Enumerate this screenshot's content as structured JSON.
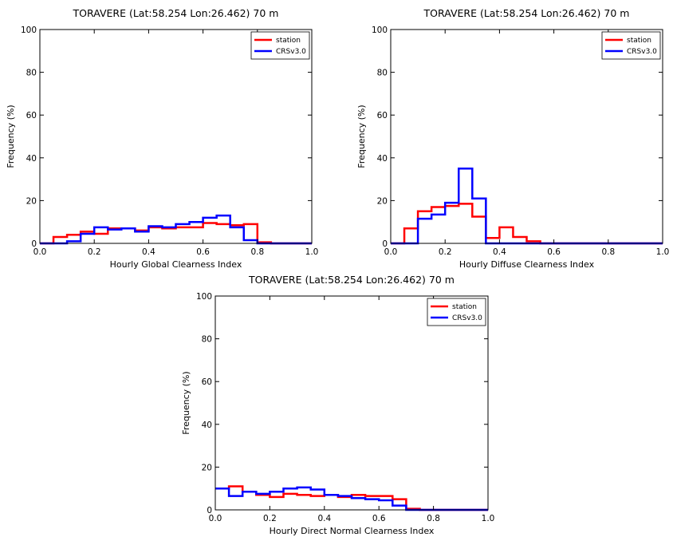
{
  "colors": {
    "station": "#ff0000",
    "CRSv3.0": "#0000ff"
  },
  "chart_data": [
    {
      "type": "histogram-step",
      "title": "TORAVERE (Lat:58.254 Lon:26.462) 70 m",
      "xlabel": "Hourly Global Clearness Index",
      "ylabel": "Frequency (%)",
      "xlim": [
        0.0,
        1.0
      ],
      "ylim": [
        0,
        100
      ],
      "xticks": [
        "0.0",
        "0.2",
        "0.4",
        "0.6",
        "0.8",
        "1.0"
      ],
      "yticks": [
        "0",
        "20",
        "40",
        "60",
        "80",
        "100"
      ],
      "bin_edges": [
        0,
        0.05,
        0.1,
        0.15,
        0.2,
        0.25,
        0.3,
        0.35,
        0.4,
        0.45,
        0.5,
        0.55,
        0.6,
        0.65,
        0.7,
        0.75,
        0.8,
        0.85,
        0.9,
        0.95,
        1.0
      ],
      "legend": "top-right",
      "series": [
        {
          "name": "station",
          "values": [
            0,
            3,
            4,
            5.5,
            4.5,
            7,
            7,
            6,
            7.5,
            7,
            7.5,
            7.5,
            9.5,
            9,
            8.5,
            9,
            0.5,
            0,
            0,
            0
          ]
        },
        {
          "name": "CRSv3.0",
          "values": [
            0,
            0,
            1,
            4.5,
            7.5,
            6.5,
            7,
            5.5,
            8,
            7.5,
            9,
            10,
            12,
            13,
            7.5,
            1.5,
            0,
            0,
            0,
            0
          ]
        }
      ]
    },
    {
      "type": "histogram-step",
      "title": "TORAVERE (Lat:58.254 Lon:26.462) 70 m",
      "xlabel": "Hourly Diffuse Clearness Index",
      "ylabel": "Frequency (%)",
      "xlim": [
        0.0,
        1.0
      ],
      "ylim": [
        0,
        100
      ],
      "xticks": [
        "0.0",
        "0.2",
        "0.4",
        "0.6",
        "0.8",
        "1.0"
      ],
      "yticks": [
        "0",
        "20",
        "40",
        "60",
        "80",
        "100"
      ],
      "bin_edges": [
        0,
        0.05,
        0.1,
        0.15,
        0.2,
        0.25,
        0.3,
        0.35,
        0.4,
        0.45,
        0.5,
        0.55,
        0.6,
        0.65,
        0.7,
        0.75,
        0.8,
        0.85,
        0.9,
        0.95,
        1.0
      ],
      "legend": "top-right",
      "series": [
        {
          "name": "station",
          "values": [
            0,
            7,
            15,
            17,
            17.5,
            18.5,
            12.5,
            2.5,
            7.5,
            3,
            1,
            0,
            0,
            0,
            0,
            0,
            0,
            0,
            0,
            0
          ]
        },
        {
          "name": "CRSv3.0",
          "values": [
            0,
            0,
            11.5,
            13.5,
            19,
            35,
            21,
            0,
            0,
            0,
            0,
            0,
            0,
            0,
            0,
            0,
            0,
            0,
            0,
            0
          ]
        }
      ]
    },
    {
      "type": "histogram-step",
      "title": "TORAVERE (Lat:58.254 Lon:26.462) 70 m",
      "xlabel": "Hourly Direct Normal Clearness Index",
      "ylabel": "Frequency (%)",
      "xlim": [
        0.0,
        1.0
      ],
      "ylim": [
        0,
        100
      ],
      "xticks": [
        "0.0",
        "0.2",
        "0.4",
        "0.6",
        "0.8",
        "1.0"
      ],
      "yticks": [
        "0",
        "20",
        "40",
        "60",
        "80",
        "100"
      ],
      "bin_edges": [
        0,
        0.05,
        0.1,
        0.15,
        0.2,
        0.25,
        0.3,
        0.35,
        0.4,
        0.45,
        0.5,
        0.55,
        0.6,
        0.65,
        0.7,
        0.75,
        0.8,
        0.85,
        0.9,
        0.95,
        1.0
      ],
      "legend": "top-right",
      "series": [
        {
          "name": "station",
          "values": [
            10,
            11,
            8.5,
            7,
            6,
            7.5,
            7,
            6.5,
            7,
            6,
            7,
            6.5,
            6.5,
            5,
            0.5,
            0,
            0,
            0,
            0,
            0
          ]
        },
        {
          "name": "CRSv3.0",
          "values": [
            10,
            6.5,
            8.5,
            7.5,
            8.5,
            10,
            10.5,
            9.5,
            7,
            6.5,
            5.5,
            5,
            4.5,
            2,
            0,
            0,
            0,
            0,
            0,
            0
          ]
        }
      ]
    }
  ]
}
